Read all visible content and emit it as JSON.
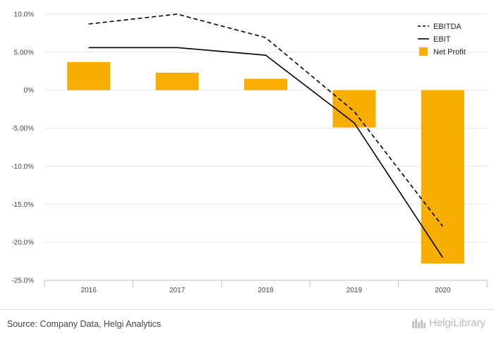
{
  "chart_data": {
    "type": "bar",
    "categories": [
      "2016",
      "2017",
      "2018",
      "2019",
      "2020"
    ],
    "ylim": [
      -25,
      10
    ],
    "yticks": [
      10,
      5,
      0,
      -5,
      -10,
      -15,
      -20,
      -25
    ],
    "ytick_labels": [
      "10.0%",
      "5.00%",
      "0%",
      "-5.00%",
      "-10.0%",
      "-15.0%",
      "-20.0%",
      "-25.0%"
    ],
    "grid": true,
    "legend_position": "top-right",
    "series": [
      {
        "name": "EBITDA",
        "kind": "line",
        "style": "dashed",
        "color": "#000000",
        "values": [
          8.7,
          10.0,
          6.9,
          -2.8,
          -17.9
        ]
      },
      {
        "name": "EBIT",
        "kind": "line",
        "style": "solid",
        "color": "#000000",
        "values": [
          5.6,
          5.6,
          4.6,
          -4.3,
          -22.0
        ]
      },
      {
        "name": "Net Profit",
        "kind": "bar",
        "color": "#f7ae00",
        "values": [
          3.7,
          2.3,
          1.5,
          -4.9,
          -22.8
        ]
      }
    ]
  },
  "footer": {
    "source": "Source: Company Data, Helgi Analytics",
    "logo_text": "HelgiLibrary"
  }
}
